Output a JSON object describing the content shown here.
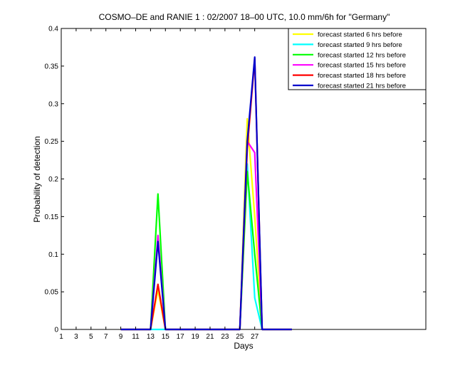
{
  "chart_data": {
    "type": "line",
    "title": "COSMO–DE and RANIE 1 : 02/2007 18–00 UTC, 10.0 mm/6h for \"Germany\"",
    "xlabel": "Days",
    "ylabel": "Probability of detection",
    "xlim": [
      1,
      50
    ],
    "ylim": [
      0,
      0.4
    ],
    "xticks": [
      1,
      3,
      5,
      7,
      9,
      11,
      13,
      15,
      17,
      19,
      21,
      23,
      25,
      27
    ],
    "xtick_labels": [
      "1",
      "3",
      "5",
      "7",
      "9",
      "11",
      "13",
      "15",
      "17",
      "19",
      "21",
      "23",
      "25",
      "27"
    ],
    "yticks": [
      0,
      0.05,
      0.1,
      0.15,
      0.2,
      0.25,
      0.3,
      0.35,
      0.4
    ],
    "ytick_labels": [
      "0",
      "0.05",
      "0.1",
      "0.15",
      "0.2",
      "0.25",
      "0.3",
      "0.35",
      "0.4"
    ],
    "legend_position": "top-right",
    "grid": false,
    "series": [
      {
        "name": "forecast started 6 hrs before",
        "color": "#ffff00",
        "x": [
          9,
          10,
          11,
          12,
          13,
          14,
          15,
          16,
          17,
          18,
          19,
          20,
          21,
          22,
          23,
          24,
          25,
          26,
          27,
          28,
          29,
          30,
          31,
          32
        ],
        "y": [
          0,
          0,
          0,
          0,
          0,
          0.053,
          0,
          0,
          0,
          0,
          0,
          0,
          0,
          0,
          0,
          0,
          0,
          0.28,
          0.15,
          0,
          0,
          0,
          0,
          0
        ]
      },
      {
        "name": "forecast started 9 hrs before",
        "color": "#00ffff",
        "x": [
          9,
          10,
          11,
          12,
          13,
          14,
          15,
          16,
          17,
          18,
          19,
          20,
          21,
          22,
          23,
          24,
          25,
          26,
          27,
          28,
          29,
          30,
          31,
          32
        ],
        "y": [
          0,
          0,
          0,
          0,
          0,
          0,
          0,
          0,
          0,
          0,
          0,
          0,
          0,
          0,
          0,
          0,
          0,
          0.22,
          0.042,
          0,
          0,
          0,
          0,
          0
        ]
      },
      {
        "name": "forecast started 12 hrs before",
        "color": "#00ff00",
        "x": [
          9,
          10,
          11,
          12,
          13,
          14,
          15,
          16,
          17,
          18,
          19,
          20,
          21,
          22,
          23,
          24,
          25,
          26,
          27,
          28,
          29,
          30,
          31,
          32
        ],
        "y": [
          0,
          0,
          0,
          0,
          0,
          0.18,
          0,
          0,
          0,
          0,
          0,
          0,
          0,
          0,
          0,
          0,
          0,
          0.21,
          0.1,
          0,
          0,
          0,
          0,
          0
        ]
      },
      {
        "name": "forecast started 15 hrs before",
        "color": "#ff00ff",
        "x": [
          9,
          10,
          11,
          12,
          13,
          14,
          15,
          16,
          17,
          18,
          19,
          20,
          21,
          22,
          23,
          24,
          25,
          26,
          27,
          28,
          29,
          30,
          31,
          32
        ],
        "y": [
          0,
          0,
          0,
          0,
          0,
          0.125,
          0,
          0,
          0,
          0,
          0,
          0,
          0,
          0,
          0,
          0,
          0,
          0.25,
          0.235,
          0,
          0,
          0,
          0,
          0
        ]
      },
      {
        "name": "forecast started 18 hrs before",
        "color": "#ff0000",
        "x": [
          9,
          10,
          11,
          12,
          13,
          14,
          15,
          16,
          17,
          18,
          19,
          20,
          21,
          22,
          23,
          24,
          25,
          26,
          27,
          28,
          29,
          30,
          31,
          32
        ],
        "y": [
          0,
          0,
          0,
          0,
          0,
          0.06,
          0,
          0,
          0,
          0,
          0,
          0,
          0,
          0,
          0,
          0,
          0,
          0.24,
          0.36,
          0,
          0,
          0,
          0,
          0
        ]
      },
      {
        "name": "forecast started 21 hrs before",
        "color": "#0000cc",
        "x": [
          9,
          10,
          11,
          12,
          13,
          14,
          15,
          16,
          17,
          18,
          19,
          20,
          21,
          22,
          23,
          24,
          25,
          26,
          27,
          28,
          29,
          30,
          31,
          32
        ],
        "y": [
          0,
          0,
          0,
          0,
          0,
          0.117,
          0,
          0,
          0,
          0,
          0,
          0,
          0,
          0,
          0,
          0,
          0,
          0.25,
          0.362,
          0,
          0,
          0,
          0,
          0
        ]
      }
    ]
  }
}
